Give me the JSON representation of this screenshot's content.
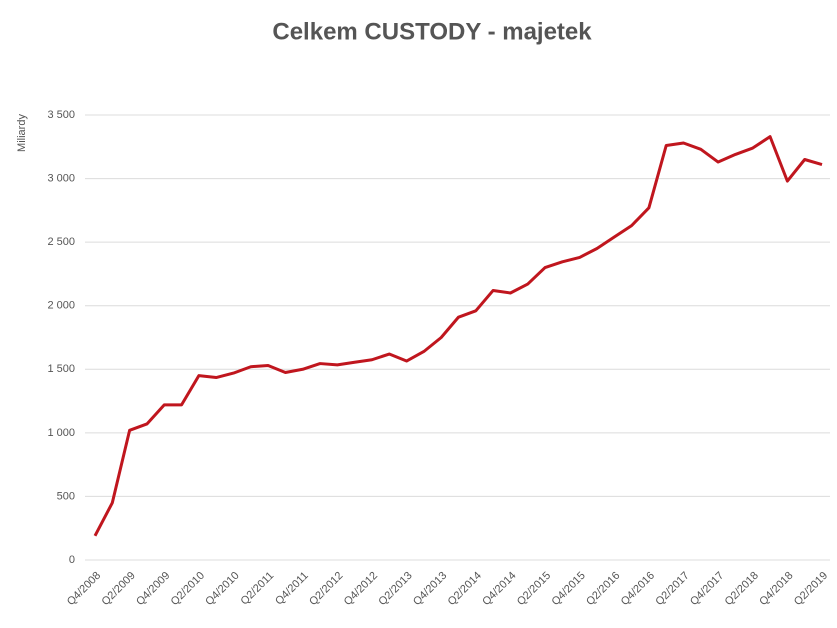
{
  "chart_data": {
    "type": "line",
    "title": "Celkem CUSTODY - majetek",
    "y_label": "Miliardy",
    "categories": [
      "Q4/2008",
      null,
      "Q2/2009",
      null,
      "Q4/2009",
      null,
      "Q2/2010",
      null,
      "Q4/2010",
      null,
      "Q2/2011",
      null,
      "Q4/2011",
      null,
      "Q2/2012",
      null,
      "Q4/2012",
      null,
      "Q2/2013",
      null,
      "Q4/2013",
      null,
      "Q2/2014",
      null,
      "Q4/2014",
      null,
      "Q2/2015",
      null,
      "Q4/2015",
      null,
      "Q2/2016",
      null,
      "Q4/2016",
      null,
      "Q2/2017",
      null,
      "Q4/2017",
      null,
      "Q2/2018",
      null,
      "Q4/2018",
      null,
      "Q2/2019"
    ],
    "series": [
      {
        "name": "Celkem CUSTODY",
        "color": "#c0161e",
        "values": [
          190,
          450,
          1020,
          1070,
          1220,
          1220,
          1450,
          1435,
          1470,
          1520,
          1530,
          1475,
          1500,
          1545,
          1535,
          1555,
          1575,
          1620,
          1565,
          1640,
          1750,
          1910,
          1960,
          2120,
          2100,
          2170,
          2300,
          2345,
          2380,
          2450,
          2540,
          2630,
          2770,
          3260,
          3280,
          3230,
          3130,
          3190,
          3240,
          3330,
          2980,
          3150,
          3110
        ]
      }
    ],
    "ylim": [
      0,
      3500
    ],
    "yticks": [
      0,
      500,
      {
        "value": 1000,
        "label": "1 000"
      },
      {
        "value": 1500,
        "label": "1 500"
      },
      {
        "value": 2000,
        "label": "2 000"
      },
      {
        "value": 2500,
        "label": "2 500"
      },
      {
        "value": 3000,
        "label": "3 000"
      },
      {
        "value": 3500,
        "label": "3 500"
      }
    ],
    "grid": true
  }
}
